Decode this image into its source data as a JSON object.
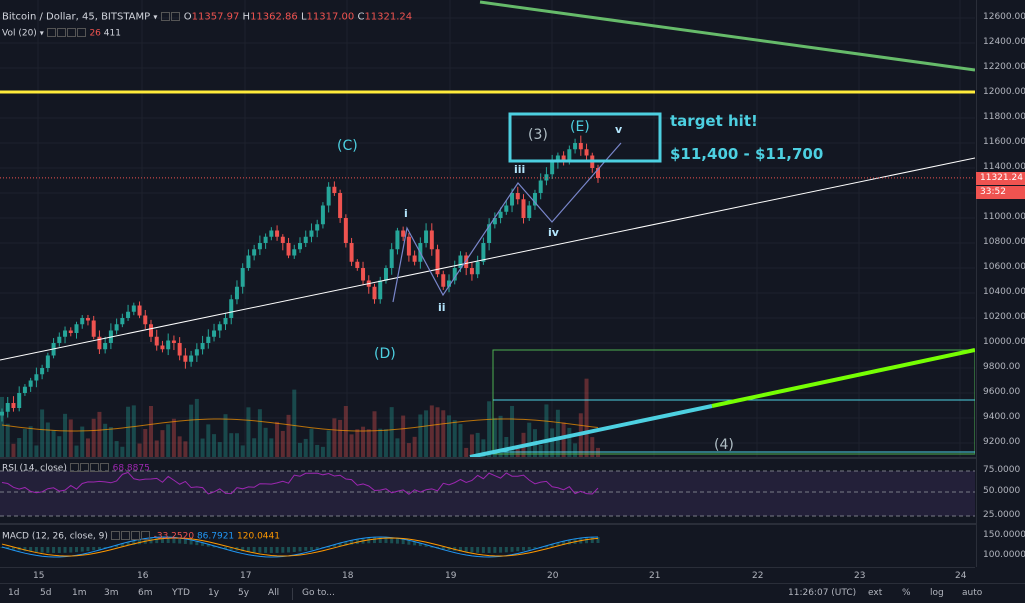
{
  "header": {
    "symbol": "Bitcoin / Dollar, 45, BITSTAMP",
    "dropdown_icon": "chevron-down-icon",
    "ohlc": {
      "o_label": "O",
      "o_value": "11357.97",
      "h_label": "H",
      "h_value": "11362.86",
      "l_label": "L",
      "l_value": "11317.00",
      "c_label": "C",
      "c_value": "11321.24"
    }
  },
  "volume_legend": {
    "name": "Vol (20)",
    "v1": "26",
    "v2": "411"
  },
  "rsi_legend": {
    "name": "RSI (14, close)",
    "value": "68.8875"
  },
  "macd_legend": {
    "name": "MACD (12, 26, close, 9)",
    "v1": "-33.2520",
    "v2": "86.7921",
    "v3": "120.0441"
  },
  "price_axis": {
    "ticks": [
      "12600.00",
      "12400.00",
      "12200.00",
      "12000.00",
      "11800.00",
      "11600.00",
      "11400.00",
      "11200.00",
      "11000.00",
      "10800.00",
      "10600.00",
      "10400.00",
      "10200.00",
      "10000.00",
      "9800.00",
      "9600.00",
      "9400.00",
      "9200.00"
    ],
    "current_price": "11321.24",
    "countdown": "33:52"
  },
  "rsi_axis": {
    "ticks": [
      "75.0000",
      "50.0000",
      "25.0000"
    ]
  },
  "macd_axis": {
    "ticks": [
      "150.0000",
      "100.0000"
    ]
  },
  "time_axis": {
    "ticks": [
      "15",
      "16",
      "17",
      "18",
      "19",
      "20",
      "21",
      "22",
      "23",
      "24"
    ]
  },
  "annotations": {
    "target_hit": "target hit!",
    "target_range": "$11,400 - $11,700",
    "wave_C": "(C)",
    "wave_D": "(D)",
    "wave_E": "(E)",
    "wave_3": "(3)",
    "wave_4": "(4)",
    "sub_i": "i",
    "sub_ii": "ii",
    "sub_iii": "iii",
    "sub_iv": "iv",
    "sub_v": "v"
  },
  "bottom_bar": {
    "ranges": [
      "1d",
      "5d",
      "1m",
      "3m",
      "6m",
      "YTD",
      "1y",
      "5y",
      "All"
    ],
    "goto": "Go to...",
    "clock": "11:26:07 (UTC)",
    "ext": "ext",
    "percent": "%",
    "log": "log",
    "auto": "auto"
  },
  "colors": {
    "background": "#131722",
    "up": "#26a69a",
    "down": "#ef5350",
    "yellow_line": "#ffeb3b",
    "green_line": "#66bb6a",
    "bright_green": "#4caf50",
    "cyan": "#4dd0e1",
    "rsi": "#9c27b0"
  },
  "chart_data": {
    "type": "candlestick",
    "symbol": "Bitcoin / Dollar, 45, BITSTAMP",
    "ylim": [
      9100,
      12700
    ],
    "x_ticks": [
      "15",
      "16",
      "17",
      "18",
      "19",
      "20",
      "21",
      "22",
      "23",
      "24"
    ],
    "closes": [
      9450,
      9520,
      9480,
      9600,
      9650,
      9700,
      9750,
      9800,
      9900,
      10000,
      10050,
      10100,
      10080,
      10150,
      10200,
      10180,
      10050,
      9950,
      10000,
      10100,
      10150,
      10200,
      10250,
      10300,
      10220,
      10150,
      10050,
      9980,
      9950,
      10020,
      10000,
      9900,
      9850,
      9900,
      9950,
      10000,
      10050,
      10100,
      10150,
      10200,
      10350,
      10450,
      10600,
      10700,
      10750,
      10800,
      10850,
      10900,
      10850,
      10800,
      10700,
      10750,
      10800,
      10850,
      10900,
      10950,
      11100,
      11250,
      11200,
      11000,
      10800,
      10650,
      10600,
      10500,
      10450,
      10350,
      10500,
      10600,
      10750,
      10900,
      10850,
      10700,
      10650,
      10800,
      10900,
      10750,
      10550,
      10450,
      10500,
      10600,
      10700,
      10600,
      10550,
      10650,
      10800,
      10950,
      11000,
      11050,
      11100,
      11200,
      11150,
      11000,
      11100,
      11200,
      11300,
      11350,
      11450,
      11500,
      11450,
      11550,
      11600,
      11550,
      11500,
      11400,
      11320
    ]
  }
}
